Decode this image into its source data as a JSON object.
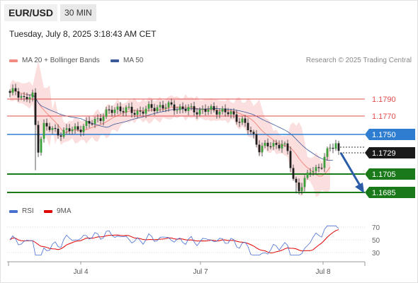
{
  "header": {
    "symbol": "EUR/USD",
    "timeframe": "30 MIN"
  },
  "timestamp": "Tuesday, July 8, 2025 3:18:43 AM CET",
  "legend": {
    "ma20": {
      "label": "MA 20 + Bollinger Bands",
      "color": "#f28b82"
    },
    "ma50": {
      "label": "MA 50",
      "color": "#3b5a9a"
    }
  },
  "watermark": "Research © 2025 Trading Central",
  "price_levels": [
    {
      "label": "1.1790",
      "kind": "resistance",
      "color": "#e34c4c"
    },
    {
      "label": "1.1770",
      "kind": "resistance",
      "color": "#e34c4c"
    },
    {
      "label": "1.1750",
      "kind": "pivot",
      "color": "#2e7dd1"
    },
    {
      "label": "1.1729",
      "kind": "last",
      "color": "#1a1a1a"
    },
    {
      "label": "1.1705",
      "kind": "support",
      "color": "#1a7a1a"
    },
    {
      "label": "1.1685",
      "kind": "support",
      "color": "#1a7a1a"
    }
  ],
  "rsi_legend": {
    "rsi": {
      "label": "RSI",
      "color": "#4a6fd1"
    },
    "ma": {
      "label": "9MA",
      "color": "#e00000"
    }
  },
  "rsi_axis": [
    "70",
    "50",
    "30"
  ],
  "x_axis": [
    "Jul 4",
    "Jul 7",
    "Jul 8"
  ],
  "colors": {
    "up": "#3aa03a",
    "down": "#1e1e1e",
    "band": "#fbdada"
  }
}
